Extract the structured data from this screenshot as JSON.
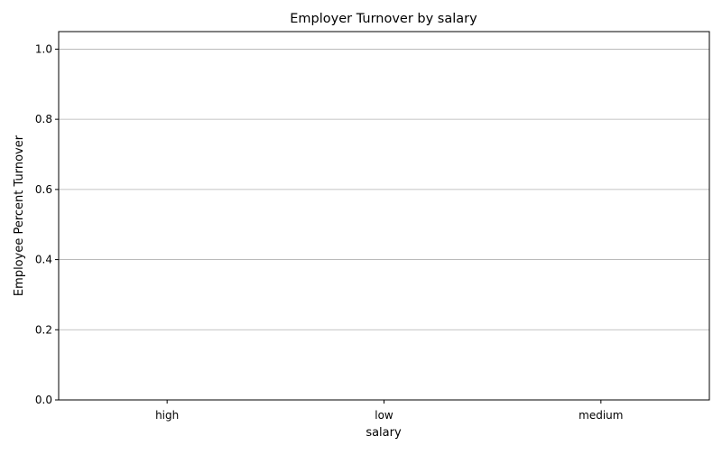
{
  "chart_data": {
    "type": "bar",
    "title": "Employer Turnover by salary",
    "xlabel": "salary",
    "ylabel": "Employee Percent Turnover",
    "categories": [
      "high",
      "low",
      "medium"
    ],
    "values": [
      0,
      0,
      0
    ],
    "ylim": [
      0,
      1.05
    ],
    "yticks": [
      "0.0",
      "0.2",
      "0.4",
      "0.6",
      "0.8",
      "1.0"
    ],
    "ytick_values": [
      0.0,
      0.2,
      0.4,
      0.6,
      0.8,
      1.0
    ],
    "grid": "y-major",
    "colors": {
      "grid": "#b0b0b0",
      "axis": "#000000",
      "background": "#ffffff"
    }
  }
}
